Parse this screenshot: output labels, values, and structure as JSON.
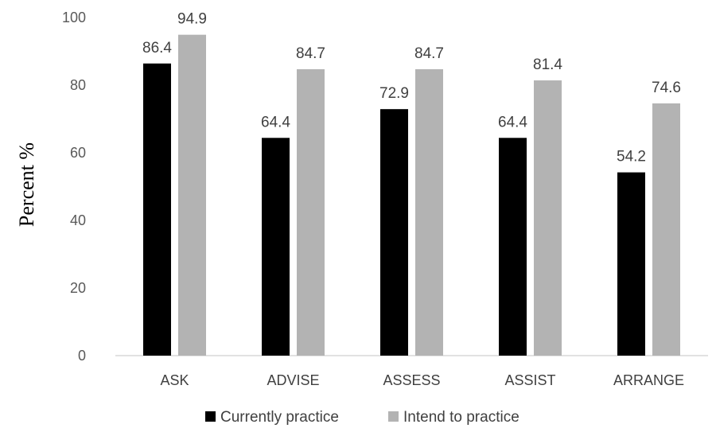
{
  "chart_data": {
    "type": "bar",
    "categories": [
      "ASK",
      "ADVISE",
      "ASSESS",
      "ASSIST",
      "ARRANGE"
    ],
    "series": [
      {
        "name": "Currently practice",
        "values": [
          86.4,
          64.4,
          72.9,
          64.4,
          54.2
        ],
        "color": "#000000"
      },
      {
        "name": "Intend to practice",
        "values": [
          94.9,
          84.7,
          84.7,
          81.4,
          74.6
        ],
        "color": "#b3b3b3"
      }
    ],
    "ylabel": "Percent %",
    "ylim": [
      0,
      100
    ],
    "yticks": [
      0,
      20,
      40,
      60,
      80,
      100
    ],
    "grid": false,
    "legend": "bottom"
  }
}
